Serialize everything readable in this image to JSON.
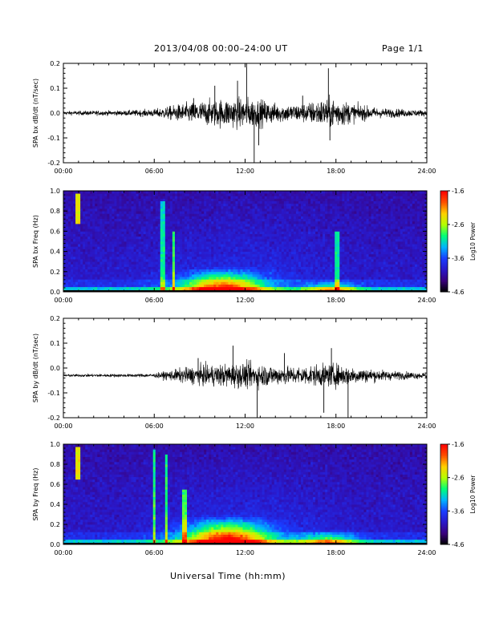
{
  "header": {
    "title": "2013/04/08  00:00–24:00 UT",
    "page": "Page 1/1"
  },
  "x_axis_label": "Universal Time (hh:mm)",
  "colors": {
    "background": "#ffffff",
    "trace": "#000000",
    "colormap": [
      "#000000",
      "#3a007a",
      "#2a18c8",
      "#1a3cff",
      "#00b4ff",
      "#00ff78",
      "#b4ff00",
      "#ffd000",
      "#ff5000",
      "#ff0000"
    ]
  },
  "chart_data": [
    {
      "type": "line",
      "ylabel": "SPA bx dB/dt (nT/sec)",
      "xlim": [
        0,
        24
      ],
      "ylim": [
        -0.2,
        0.2
      ],
      "x_ticks": [
        "00:00",
        "06:00",
        "12:00",
        "18:00",
        "24:00"
      ],
      "y_ticks": [
        "-0.2",
        "-0.1",
        "0.0",
        "0.1",
        "0.2"
      ],
      "baseline": 0.0,
      "envelope": {
        "hours": [
          0,
          2,
          4,
          6,
          7,
          8,
          9,
          10,
          11,
          12,
          13,
          14,
          15,
          16,
          17,
          18,
          19,
          20,
          21,
          22,
          23,
          24
        ],
        "amplitude": [
          0.01,
          0.012,
          0.013,
          0.02,
          0.035,
          0.05,
          0.06,
          0.07,
          0.075,
          0.08,
          0.07,
          0.05,
          0.045,
          0.05,
          0.07,
          0.08,
          0.05,
          0.035,
          0.025,
          0.022,
          0.018,
          0.015
        ]
      },
      "spikes": [
        {
          "hour": 8.6,
          "value": 0.06
        },
        {
          "hour": 10.0,
          "value": 0.11
        },
        {
          "hour": 11.5,
          "value": 0.13
        },
        {
          "hour": 12.1,
          "value": 0.2
        },
        {
          "hour": 12.6,
          "value": -0.2
        },
        {
          "hour": 12.9,
          "value": -0.13
        },
        {
          "hour": 15.8,
          "value": 0.07
        },
        {
          "hour": 17.5,
          "value": 0.18
        },
        {
          "hour": 17.6,
          "value": -0.11
        }
      ]
    },
    {
      "type": "heatmap",
      "ylabel": "SPA bx Freq (Hz)",
      "xlim": [
        0,
        24
      ],
      "ylim": [
        0,
        1.0
      ],
      "x_ticks": [
        "00:00",
        "06:00",
        "12:00",
        "18:00",
        "24:00"
      ],
      "y_ticks": [
        "0.0",
        "0.2",
        "0.4",
        "0.6",
        "0.8",
        "1.0"
      ],
      "colorbar": {
        "label": "Log10 Power",
        "ticks": [
          "-1.6",
          "-2.6",
          "-3.6",
          "-4.6"
        ],
        "range": [
          -4.6,
          -1.6
        ]
      },
      "features": [
        {
          "kind": "activity",
          "center_hour": 10.5,
          "width_hours": 2.6,
          "max_freq": 0.25,
          "strength": 0.75
        },
        {
          "kind": "activity",
          "center_hour": 17.8,
          "width_hours": 1.6,
          "max_freq": 0.12,
          "strength": 0.45
        },
        {
          "kind": "vertical",
          "hour": 1.0,
          "from_freq": 0.68,
          "to_freq": 0.98,
          "strength": 0.55
        },
        {
          "kind": "vertical",
          "hour": 6.6,
          "from_freq": 0.0,
          "to_freq": 0.9,
          "strength": 0.3
        },
        {
          "kind": "vertical",
          "hour": 7.3,
          "from_freq": 0.0,
          "to_freq": 0.6,
          "strength": 0.35
        },
        {
          "kind": "vertical",
          "hour": 18.1,
          "from_freq": 0.0,
          "to_freq": 0.6,
          "strength": 0.3
        }
      ]
    },
    {
      "type": "line",
      "ylabel": "SPA by dB/dt (nT/sec)",
      "xlim": [
        0,
        24
      ],
      "ylim": [
        -0.2,
        0.2
      ],
      "x_ticks": [
        "00:00",
        "06:00",
        "12:00",
        "18:00",
        "24:00"
      ],
      "y_ticks": [
        "-0.2",
        "-0.1",
        "0.0",
        "0.1",
        "0.2"
      ],
      "baseline": -0.03,
      "envelope": {
        "hours": [
          0,
          2,
          4,
          6,
          7,
          8,
          9,
          10,
          11,
          12,
          13,
          14,
          15,
          16,
          17,
          18,
          19,
          20,
          21,
          22,
          23,
          24
        ],
        "amplitude": [
          0.006,
          0.008,
          0.008,
          0.01,
          0.025,
          0.04,
          0.05,
          0.055,
          0.06,
          0.065,
          0.06,
          0.05,
          0.045,
          0.05,
          0.055,
          0.06,
          0.045,
          0.035,
          0.028,
          0.022,
          0.018,
          0.015
        ]
      },
      "spikes": [
        {
          "hour": 8.9,
          "value": 0.04
        },
        {
          "hour": 11.2,
          "value": 0.09
        },
        {
          "hour": 12.8,
          "value": -0.2
        },
        {
          "hour": 14.6,
          "value": 0.06
        },
        {
          "hour": 17.2,
          "value": -0.18
        },
        {
          "hour": 17.7,
          "value": 0.08
        },
        {
          "hour": 18.8,
          "value": -0.2
        }
      ]
    },
    {
      "type": "heatmap",
      "ylabel": "SPA by Freq (Hz)",
      "xlim": [
        0,
        24
      ],
      "ylim": [
        0,
        1.0
      ],
      "x_ticks": [
        "00:00",
        "06:00",
        "12:00",
        "18:00",
        "24:00"
      ],
      "y_ticks": [
        "0.0",
        "0.2",
        "0.4",
        "0.6",
        "0.8",
        "1.0"
      ],
      "colorbar": {
        "label": "Log10 Power",
        "ticks": [
          "-1.6",
          "-2.6",
          "-3.6",
          "-4.6"
        ],
        "range": [
          -4.6,
          -1.6
        ]
      },
      "features": [
        {
          "kind": "activity",
          "center_hour": 10.8,
          "width_hours": 2.8,
          "max_freq": 0.3,
          "strength": 0.8
        },
        {
          "kind": "activity",
          "center_hour": 17.5,
          "width_hours": 1.8,
          "max_freq": 0.15,
          "strength": 0.45
        },
        {
          "kind": "vertical",
          "hour": 1.0,
          "from_freq": 0.65,
          "to_freq": 0.98,
          "strength": 0.55
        },
        {
          "kind": "vertical",
          "hour": 6.0,
          "from_freq": 0.0,
          "to_freq": 0.95,
          "strength": 0.35
        },
        {
          "kind": "vertical",
          "hour": 6.8,
          "from_freq": 0.0,
          "to_freq": 0.9,
          "strength": 0.35
        },
        {
          "kind": "vertical",
          "hour": 8.0,
          "from_freq": 0.0,
          "to_freq": 0.55,
          "strength": 0.35
        }
      ]
    }
  ]
}
